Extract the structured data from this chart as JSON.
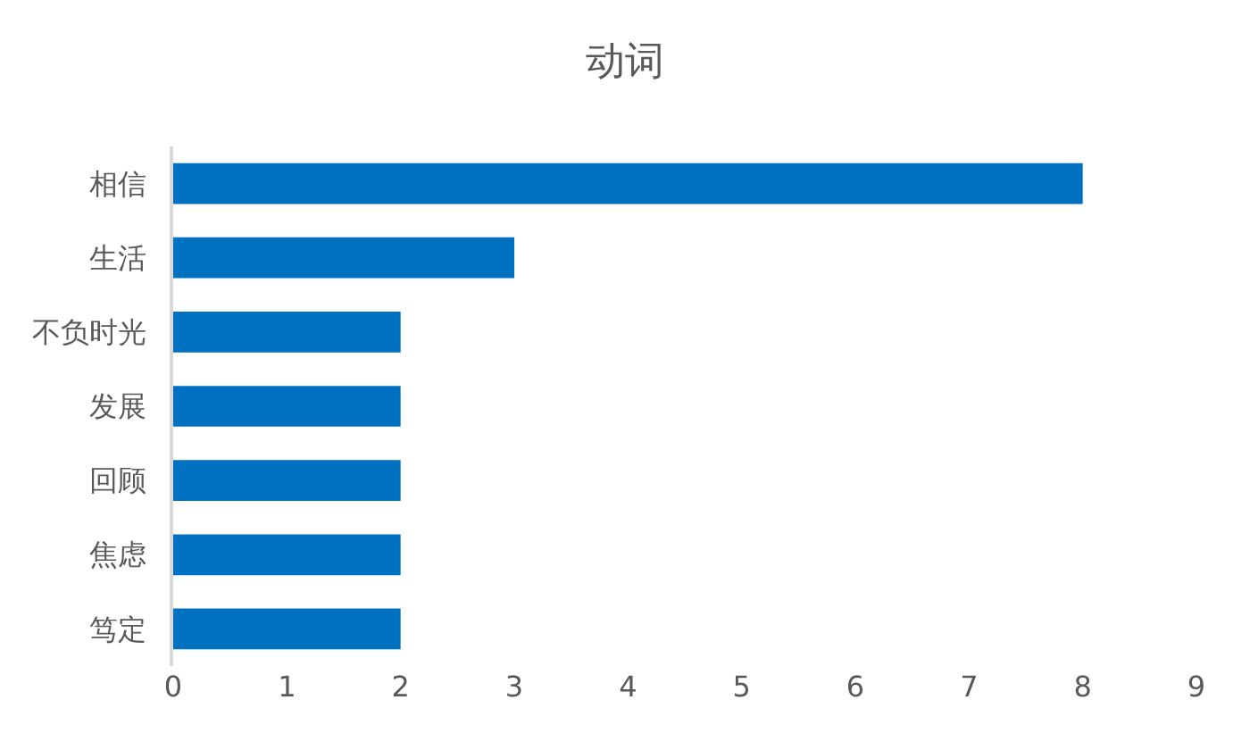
{
  "chart_data": {
    "type": "bar",
    "orientation": "horizontal",
    "title": "动词",
    "categories": [
      "相信",
      "生活",
      "不负时光",
      "发展",
      "回顾",
      "焦虑",
      "笃定"
    ],
    "values": [
      8,
      3,
      2,
      2,
      2,
      2,
      2
    ],
    "color": "#0070c0",
    "xlim": [
      0,
      9
    ],
    "xticks": [
      0,
      1,
      2,
      3,
      4,
      5,
      6,
      7,
      8,
      9
    ],
    "grid": false
  }
}
